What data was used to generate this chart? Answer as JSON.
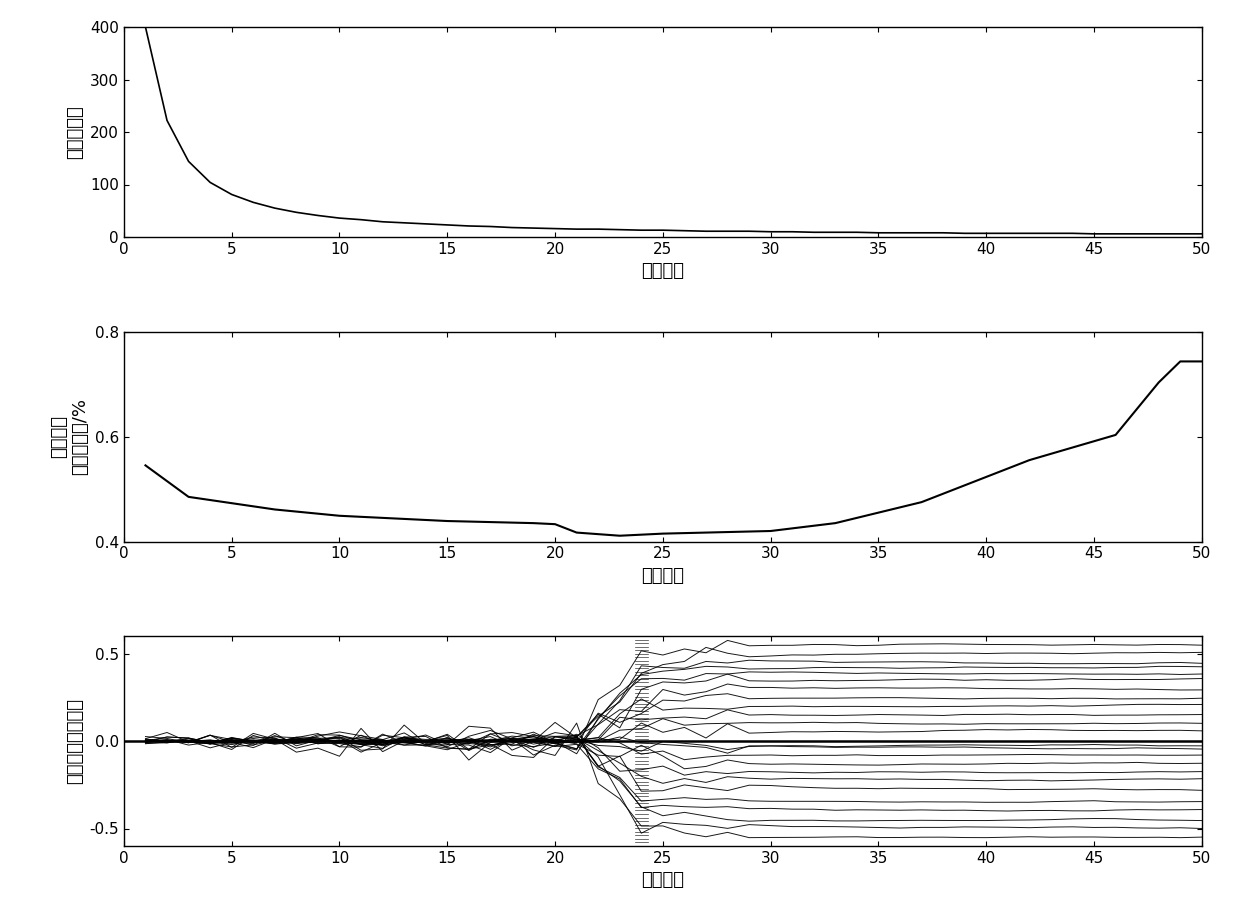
{
  "subplot1": {
    "ylabel": "保留波长数",
    "xlabel": "运行次数",
    "xlim": [
      0,
      50
    ],
    "ylim": [
      0,
      400
    ],
    "yticks": [
      0,
      100,
      200,
      300,
      400
    ],
    "xticks": [
      0,
      5,
      10,
      15,
      20,
      25,
      30,
      35,
      40,
      45,
      50
    ]
  },
  "subplot2": {
    "ylabel": "交互验证\n均方根误差/%",
    "xlabel": "运行次数",
    "xlim": [
      0,
      50
    ],
    "ylim": [
      0.4,
      0.8
    ],
    "yticks": [
      0.4,
      0.6,
      0.8
    ],
    "xticks": [
      0,
      5,
      10,
      15,
      20,
      25,
      30,
      35,
      40,
      45,
      50
    ]
  },
  "subplot3": {
    "ylabel": "波长变量回归系数",
    "xlabel": "运行次数",
    "xlim": [
      0,
      50
    ],
    "ylim": [
      -0.6,
      0.6
    ],
    "yticks": [
      -0.5,
      0,
      0.5
    ],
    "xticks": [
      0,
      5,
      10,
      15,
      20,
      25,
      30,
      35,
      40,
      45,
      50
    ]
  },
  "line_color": "#000000",
  "background_color": "#ffffff",
  "figsize": [
    12.39,
    9.0
  ],
  "dpi": 100
}
